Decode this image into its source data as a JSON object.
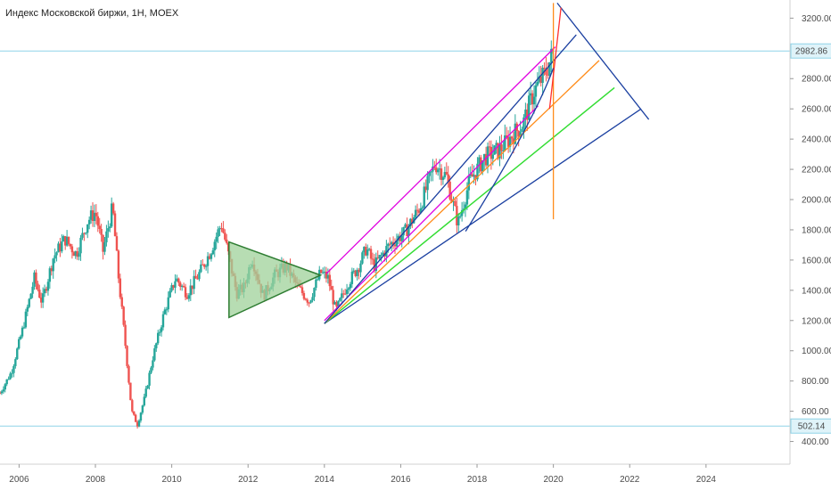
{
  "header": {
    "title": "Индекс Московской биржи, 1H, MOEX"
  },
  "colors": {
    "up": "#26a69a",
    "down": "#ef5350",
    "channel": "#e000e0",
    "fan_blue": "#1a3fa0",
    "fan_orange": "#ff8c1a",
    "fan_green": "#33dd33",
    "triangle_fill": "#9fd29a",
    "triangle_stroke": "#2e7d32",
    "hline": "#8fd3e8",
    "vline": "#ff8c1a",
    "arc_red": "#ff3030"
  },
  "chart_data": {
    "type": "candlestick",
    "ylim": [
      250,
      3320
    ],
    "xlim": [
      2005.5,
      2026.2
    ],
    "y_ticks": [
      "400.00",
      "600.00",
      "800.00",
      "1000.00",
      "1200.00",
      "1400.00",
      "1600.00",
      "1800.00",
      "2000.00",
      "2200.00",
      "2400.00",
      "2600.00",
      "2800.00",
      "3200.00"
    ],
    "y_tick_values": [
      400,
      600,
      800,
      1000,
      1200,
      1400,
      1600,
      1800,
      2000,
      2200,
      2400,
      2600,
      2800,
      3200
    ],
    "x_ticks": [
      "2006",
      "2008",
      "2010",
      "2012",
      "2014",
      "2016",
      "2018",
      "2020",
      "2022",
      "2024"
    ],
    "x_tick_values": [
      2006,
      2008,
      2010,
      2012,
      2014,
      2016,
      2018,
      2020,
      2022,
      2024
    ],
    "price_labels": [
      {
        "value": 2982.86,
        "label": "2982.86"
      },
      {
        "value": 502.14,
        "label": "502.14"
      }
    ],
    "price_path": [
      [
        2005.5,
        720
      ],
      [
        2005.8,
        860
      ],
      [
        2006.1,
        1150
      ],
      [
        2006.4,
        1480
      ],
      [
        2006.6,
        1320
      ],
      [
        2006.9,
        1620
      ],
      [
        2007.2,
        1740
      ],
      [
        2007.5,
        1640
      ],
      [
        2007.8,
        1860
      ],
      [
        2008.0,
        1920
      ],
      [
        2008.2,
        1660
      ],
      [
        2008.45,
        1950
      ],
      [
        2008.6,
        1500
      ],
      [
        2008.8,
        1000
      ],
      [
        2008.95,
        600
      ],
      [
        2009.1,
        510
      ],
      [
        2009.3,
        700
      ],
      [
        2009.5,
        950
      ],
      [
        2009.8,
        1250
      ],
      [
        2010.1,
        1480
      ],
      [
        2010.4,
        1380
      ],
      [
        2010.7,
        1500
      ],
      [
        2011.0,
        1650
      ],
      [
        2011.3,
        1840
      ],
      [
        2011.5,
        1620
      ],
      [
        2011.7,
        1380
      ],
      [
        2011.9,
        1420
      ],
      [
        2012.1,
        1620
      ],
      [
        2012.4,
        1360
      ],
      [
        2012.7,
        1500
      ],
      [
        2013.0,
        1560
      ],
      [
        2013.3,
        1420
      ],
      [
        2013.6,
        1330
      ],
      [
        2013.9,
        1520
      ],
      [
        2014.1,
        1480
      ],
      [
        2014.3,
        1260
      ],
      [
        2014.6,
        1440
      ],
      [
        2014.9,
        1560
      ],
      [
        2015.1,
        1680
      ],
      [
        2015.3,
        1560
      ],
      [
        2015.7,
        1700
      ],
      [
        2016.1,
        1780
      ],
      [
        2016.5,
        1950
      ],
      [
        2016.9,
        2240
      ],
      [
        2017.2,
        2150
      ],
      [
        2017.5,
        1840
      ],
      [
        2017.8,
        2120
      ],
      [
        2018.2,
        2280
      ],
      [
        2018.6,
        2330
      ],
      [
        2018.9,
        2420
      ],
      [
        2019.2,
        2500
      ],
      [
        2019.5,
        2720
      ],
      [
        2019.8,
        2840
      ],
      [
        2020.0,
        2982
      ]
    ],
    "drawings": {
      "triangle": [
        [
          2011.5,
          1720
        ],
        [
          2013.9,
          1500
        ],
        [
          2011.5,
          1220
        ]
      ],
      "channel_upper": [
        [
          2014.05,
          1510
        ],
        [
          2020.05,
          3010
        ]
      ],
      "channel_lower": [
        [
          2014.0,
          1200
        ],
        [
          2019.6,
          2620
        ]
      ],
      "fan_origin": [
        2014.0,
        1180
      ],
      "fan_blue_end": [
        2022.3,
        2600
      ],
      "fan_green_end": [
        2021.6,
        2740
      ],
      "fan_orange_end": [
        2021.2,
        2920
      ],
      "fan_blue2_end": [
        2020.6,
        3090
      ],
      "fan_edge": [
        [
          2020.1,
          3300
        ],
        [
          2022.5,
          2530
        ]
      ],
      "vline": {
        "x": 2020.0,
        "y_from": 1870,
        "y_to": 3300
      },
      "arc_lower": [
        [
          2017.7,
          1790
        ],
        [
          2019.5,
          2520
        ],
        [
          2020.0,
          2870
        ]
      ]
    }
  }
}
